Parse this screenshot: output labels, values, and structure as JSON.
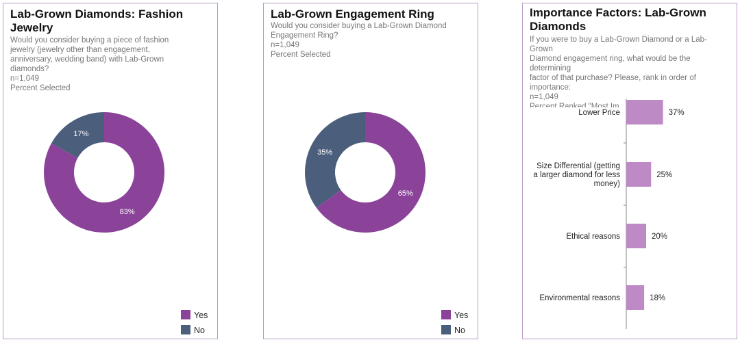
{
  "colors": {
    "yes": "#8a4399",
    "no": "#4b5f7d",
    "bar": "#bd8ac6",
    "axis": "#888888"
  },
  "chart_data": [
    {
      "type": "pie",
      "title": "Lab-Grown Diamonds: Fashion Jewelry",
      "subtitle": "Would you consider buying a piece of fashion\njewelry (jewelry other than engagement,\nanniversary, wedding band) with Lab-Grown\ndiamonds?\nn=1,049\nPercent Selected",
      "categories": [
        "Yes",
        "No"
      ],
      "values": [
        83,
        17
      ],
      "value_labels": [
        "83%",
        "17%"
      ],
      "legend": [
        "Yes",
        "No"
      ],
      "legend_position": "bottom-right"
    },
    {
      "type": "pie",
      "title": "Lab-Grown Engagement Ring",
      "subtitle": "Would you consider buying a Lab-Grown Diamond\nEngagement Ring?\nn=1,049\nPercent Selected",
      "categories": [
        "Yes",
        "No"
      ],
      "values": [
        65,
        35
      ],
      "value_labels": [
        "65%",
        "35%"
      ],
      "legend": [
        "Yes",
        "No"
      ],
      "legend_position": "bottom-right"
    },
    {
      "type": "bar",
      "orientation": "horizontal",
      "title": "Importance Factors: Lab-Grown\nDiamonds",
      "subtitle": "If you were to buy a Lab-Grown Diamond or a Lab-\nGrown\nDiamond engagement ring, what would be the\ndetermining\nfactor of that purchase? Please, rank in order of\nimportance:\nn=1,049\nPercent Ranked \"Most Im",
      "categories": [
        "Lower Price",
        "Size Differential (getting\na larger diamond for less\nmoney)",
        "Ethical reasons",
        "Environmental reasons"
      ],
      "values": [
        37,
        25,
        20,
        18
      ],
      "value_labels": [
        "37%",
        "25%",
        "20%",
        "18%"
      ],
      "xlim": [
        0,
        100
      ]
    }
  ]
}
